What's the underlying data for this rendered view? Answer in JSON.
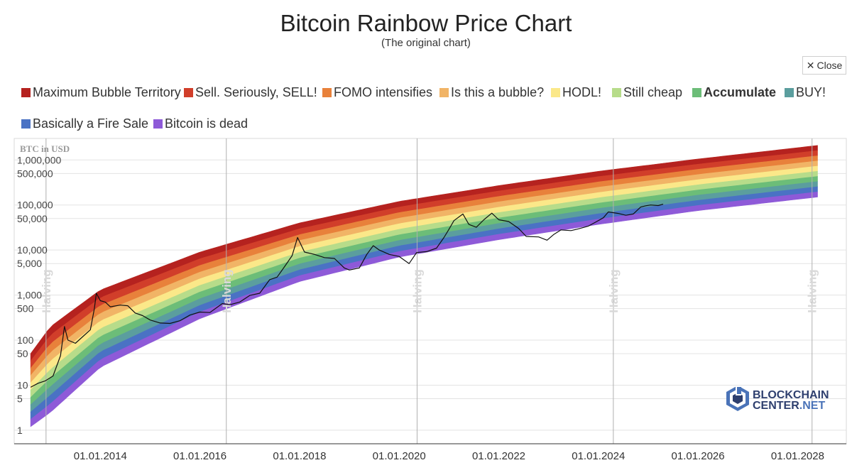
{
  "chart_data": {
    "type": "area",
    "title": "Bitcoin Rainbow Price Chart",
    "subtitle": "(The original chart)",
    "ylabel": "BTC in USD",
    "yscale": "log",
    "ylim": [
      0.5,
      3000000
    ],
    "xlim": [
      "2012-08-01",
      "2028-07-01"
    ],
    "y_tick_labels": [
      {
        "value": 1000000,
        "label": "1,000,000"
      },
      {
        "value": 500000,
        "label": "500,000"
      },
      {
        "value": 100000,
        "label": "100,000"
      },
      {
        "value": 50000,
        "label": "50,000"
      },
      {
        "value": 10000,
        "label": "10,000"
      },
      {
        "value": 5000,
        "label": "5,000"
      },
      {
        "value": 1000,
        "label": "1,000"
      },
      {
        "value": 500,
        "label": "500"
      },
      {
        "value": 100,
        "label": "100"
      },
      {
        "value": 50,
        "label": "50"
      },
      {
        "value": 10,
        "label": "10"
      },
      {
        "value": 5,
        "label": "5"
      },
      {
        "value": 1,
        "label": "1"
      }
    ],
    "x_tick_labels": [
      {
        "year": 2014,
        "label": "01.01.2014"
      },
      {
        "year": 2016,
        "label": "01.01.2016"
      },
      {
        "year": 2018,
        "label": "01.01.2018"
      },
      {
        "year": 2020,
        "label": "01.01.2020"
      },
      {
        "year": 2022,
        "label": "01.01.2022"
      },
      {
        "year": 2024,
        "label": "01.01.2024"
      },
      {
        "year": 2026,
        "label": "01.01.2026"
      },
      {
        "year": 2028,
        "label": "01.01.2028"
      }
    ],
    "halvings": [
      {
        "year": 2012.91,
        "label": "Halving"
      },
      {
        "year": 2016.53,
        "label": "Halving"
      },
      {
        "year": 2020.36,
        "label": "Halving"
      },
      {
        "year": 2024.3,
        "label": "Halving"
      },
      {
        "year": 2028.29,
        "label": "Halving"
      }
    ],
    "bands": [
      {
        "name": "Maximum Bubble Territory",
        "color": "#b5221f"
      },
      {
        "name": "Sell. Seriously, SELL!",
        "color": "#d13e2a"
      },
      {
        "name": "FOMO intensifies",
        "color": "#e8813b"
      },
      {
        "name": "Is this a bubble?",
        "color": "#f1b466"
      },
      {
        "name": "HODL!",
        "color": "#fbe889"
      },
      {
        "name": "Still cheap",
        "color": "#b7dc8a"
      },
      {
        "name": "Accumulate",
        "color": "#6cbd78"
      },
      {
        "name": "BUY!",
        "color": "#5b9e9e"
      },
      {
        "name": "Basically a Fire Sale",
        "color": "#4a72c4"
      },
      {
        "name": "Bitcoin is dead",
        "color": "#8e5ad8"
      }
    ],
    "rainbow_top": [
      {
        "year": 2012.6,
        "value": 50
      },
      {
        "year": 2013.0,
        "value": 200
      },
      {
        "year": 2014.0,
        "value": 1300
      },
      {
        "year": 2016.0,
        "value": 9000
      },
      {
        "year": 2018.0,
        "value": 40000
      },
      {
        "year": 2020.0,
        "value": 120000
      },
      {
        "year": 2022.0,
        "value": 270000
      },
      {
        "year": 2024.0,
        "value": 560000
      },
      {
        "year": 2026.0,
        "value": 1050000
      },
      {
        "year": 2028.4,
        "value": 2100000
      }
    ],
    "rainbow_bottom": [
      {
        "year": 2012.6,
        "value": 1.2
      },
      {
        "year": 2013.0,
        "value": 2.5
      },
      {
        "year": 2014.0,
        "value": 25
      },
      {
        "year": 2016.0,
        "value": 300
      },
      {
        "year": 2018.0,
        "value": 2000
      },
      {
        "year": 2020.0,
        "value": 7000
      },
      {
        "year": 2022.0,
        "value": 17000
      },
      {
        "year": 2024.0,
        "value": 37000
      },
      {
        "year": 2026.0,
        "value": 75000
      },
      {
        "year": 2028.4,
        "value": 150000
      }
    ],
    "series": [
      {
        "name": "BTC price (USD)",
        "color": "#111111",
        "points": [
          [
            2012.6,
            9
          ],
          [
            2012.75,
            11
          ],
          [
            2012.9,
            12.5
          ],
          [
            2013.05,
            16
          ],
          [
            2013.2,
            45
          ],
          [
            2013.28,
            200
          ],
          [
            2013.35,
            100
          ],
          [
            2013.5,
            85
          ],
          [
            2013.65,
            120
          ],
          [
            2013.8,
            170
          ],
          [
            2013.88,
            500
          ],
          [
            2013.92,
            1100
          ],
          [
            2014.0,
            750
          ],
          [
            2014.1,
            700
          ],
          [
            2014.2,
            550
          ],
          [
            2014.4,
            600
          ],
          [
            2014.55,
            580
          ],
          [
            2014.7,
            400
          ],
          [
            2014.85,
            350
          ],
          [
            2015.0,
            280
          ],
          [
            2015.2,
            240
          ],
          [
            2015.4,
            235
          ],
          [
            2015.6,
            270
          ],
          [
            2015.8,
            360
          ],
          [
            2016.0,
            420
          ],
          [
            2016.2,
            410
          ],
          [
            2016.45,
            650
          ],
          [
            2016.6,
            610
          ],
          [
            2016.8,
            700
          ],
          [
            2017.0,
            980
          ],
          [
            2017.2,
            1100
          ],
          [
            2017.4,
            2200
          ],
          [
            2017.55,
            2500
          ],
          [
            2017.7,
            4300
          ],
          [
            2017.85,
            7500
          ],
          [
            2017.96,
            19000
          ],
          [
            2018.1,
            9000
          ],
          [
            2018.3,
            8000
          ],
          [
            2018.5,
            6800
          ],
          [
            2018.7,
            6500
          ],
          [
            2018.9,
            4000
          ],
          [
            2019.0,
            3600
          ],
          [
            2019.2,
            4000
          ],
          [
            2019.35,
            8000
          ],
          [
            2019.48,
            12500
          ],
          [
            2019.6,
            10000
          ],
          [
            2019.8,
            8000
          ],
          [
            2020.0,
            7200
          ],
          [
            2020.2,
            5000
          ],
          [
            2020.35,
            8800
          ],
          [
            2020.55,
            9200
          ],
          [
            2020.75,
            11000
          ],
          [
            2020.9,
            19000
          ],
          [
            2021.0,
            29000
          ],
          [
            2021.1,
            45000
          ],
          [
            2021.28,
            63000
          ],
          [
            2021.4,
            37000
          ],
          [
            2021.55,
            32000
          ],
          [
            2021.7,
            47000
          ],
          [
            2021.86,
            66000
          ],
          [
            2022.0,
            47000
          ],
          [
            2022.2,
            43000
          ],
          [
            2022.4,
            30000
          ],
          [
            2022.55,
            20000
          ],
          [
            2022.8,
            19500
          ],
          [
            2022.97,
            16500
          ],
          [
            2023.1,
            22000
          ],
          [
            2023.25,
            28000
          ],
          [
            2023.45,
            27000
          ],
          [
            2023.6,
            29500
          ],
          [
            2023.8,
            34000
          ],
          [
            2023.95,
            42000
          ],
          [
            2024.1,
            52000
          ],
          [
            2024.2,
            70000
          ],
          [
            2024.4,
            65000
          ],
          [
            2024.55,
            59000
          ],
          [
            2024.7,
            63000
          ],
          [
            2024.85,
            90000
          ],
          [
            2024.95,
            96000
          ],
          [
            2025.05,
            100000
          ],
          [
            2025.2,
            97000
          ],
          [
            2025.3,
            104000
          ]
        ]
      }
    ]
  },
  "ui": {
    "close_label": "Close",
    "logo_line1": "BLOCKCHAIN",
    "logo_line2": "CENTER",
    "logo_line2_suffix": ".NET"
  }
}
